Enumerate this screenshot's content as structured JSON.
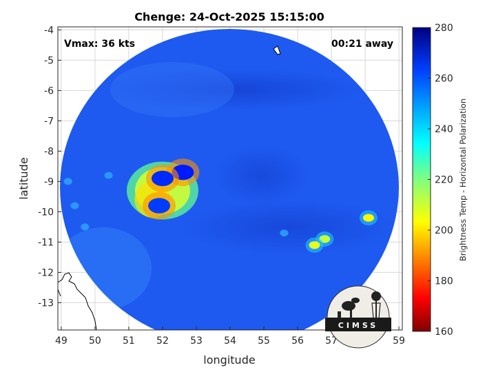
{
  "title": "Chenge: 24-Oct-2025 15:15:00",
  "vmax_label": "Vmax: 36 kts",
  "away_label": "00:21 away",
  "xlabel": "longitude",
  "ylabel": "latitude",
  "colorbar": {
    "title": "Brightness Temp - Horizontal Polarization",
    "ticks": [
      "160",
      "180",
      "200",
      "220",
      "240",
      "260",
      "280"
    ],
    "range": [
      160,
      280
    ],
    "colormap": "jet"
  },
  "logo_text": "CIMSS",
  "map": {
    "x_ticks": [
      "49",
      "50",
      "51",
      "52",
      "53",
      "54",
      "55",
      "56",
      "57",
      "58",
      "59"
    ],
    "y_ticks": [
      "-4",
      "-5",
      "-6",
      "-7",
      "-8",
      "-9",
      "-10",
      "-11",
      "-12",
      "-13"
    ],
    "xlim": [
      48.9,
      59.1
    ],
    "ylim": [
      -13.9,
      -3.9
    ],
    "grid": true,
    "background_temp": 262,
    "coastline_color": "#000000",
    "cold_cloud_cores": [
      {
        "lon": 52.6,
        "lat": -8.7,
        "min_temp": 178
      },
      {
        "lon": 52.0,
        "lat": -8.9,
        "min_temp": 180
      },
      {
        "lon": 51.9,
        "lat": -9.8,
        "min_temp": 182
      },
      {
        "lon": 56.8,
        "lat": -10.9,
        "min_temp": 228
      },
      {
        "lon": 56.5,
        "lat": -11.1,
        "min_temp": 232
      },
      {
        "lon": 58.1,
        "lat": -10.2,
        "min_temp": 236
      }
    ]
  }
}
